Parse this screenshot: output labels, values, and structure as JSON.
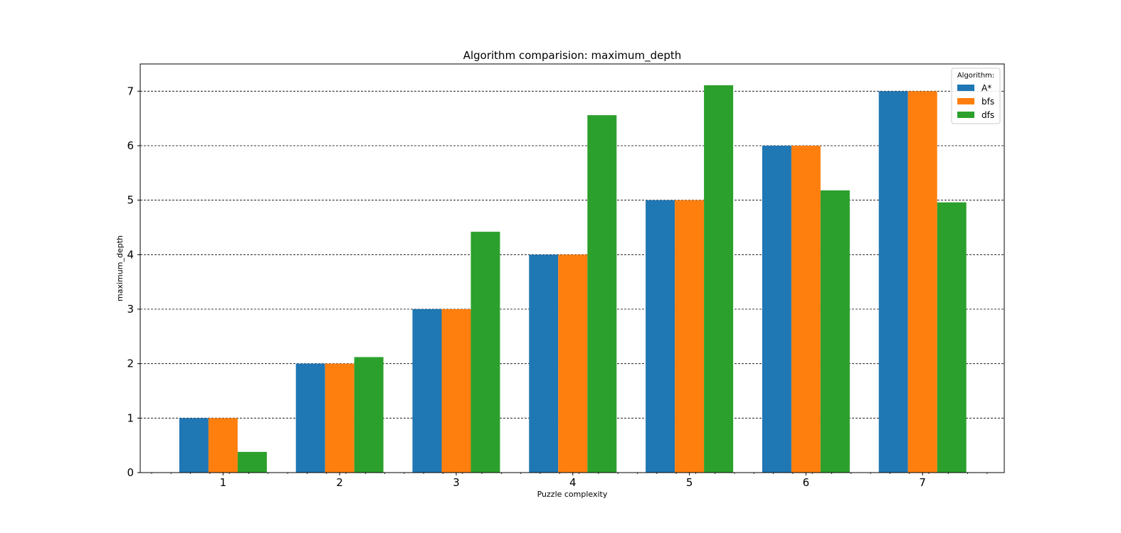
{
  "chart_data": {
    "type": "bar",
    "title": "Algorithm comparision: maximum_depth",
    "xlabel": "Puzzle complexity",
    "ylabel": "maximum_depth",
    "categories": [
      "1",
      "2",
      "3",
      "4",
      "5",
      "6",
      "7"
    ],
    "series": [
      {
        "name": "A*",
        "color": "#1f77b4",
        "values": [
          1,
          2,
          3,
          4,
          5,
          6,
          7
        ]
      },
      {
        "name": "bfs",
        "color": "#ff7f0e",
        "values": [
          1,
          2,
          3,
          4,
          5,
          6,
          7
        ]
      },
      {
        "name": "dfs",
        "color": "#2ca02c",
        "values": [
          0.38,
          2.12,
          4.42,
          6.56,
          7.11,
          5.18,
          4.96
        ]
      }
    ],
    "ylim": [
      0,
      7.5
    ],
    "yticks": [
      "0",
      "1",
      "2",
      "3",
      "4",
      "5",
      "6",
      "7"
    ],
    "grid": "y-dashed",
    "legend": {
      "title": "Algorithm:",
      "placement": "top-right"
    }
  }
}
